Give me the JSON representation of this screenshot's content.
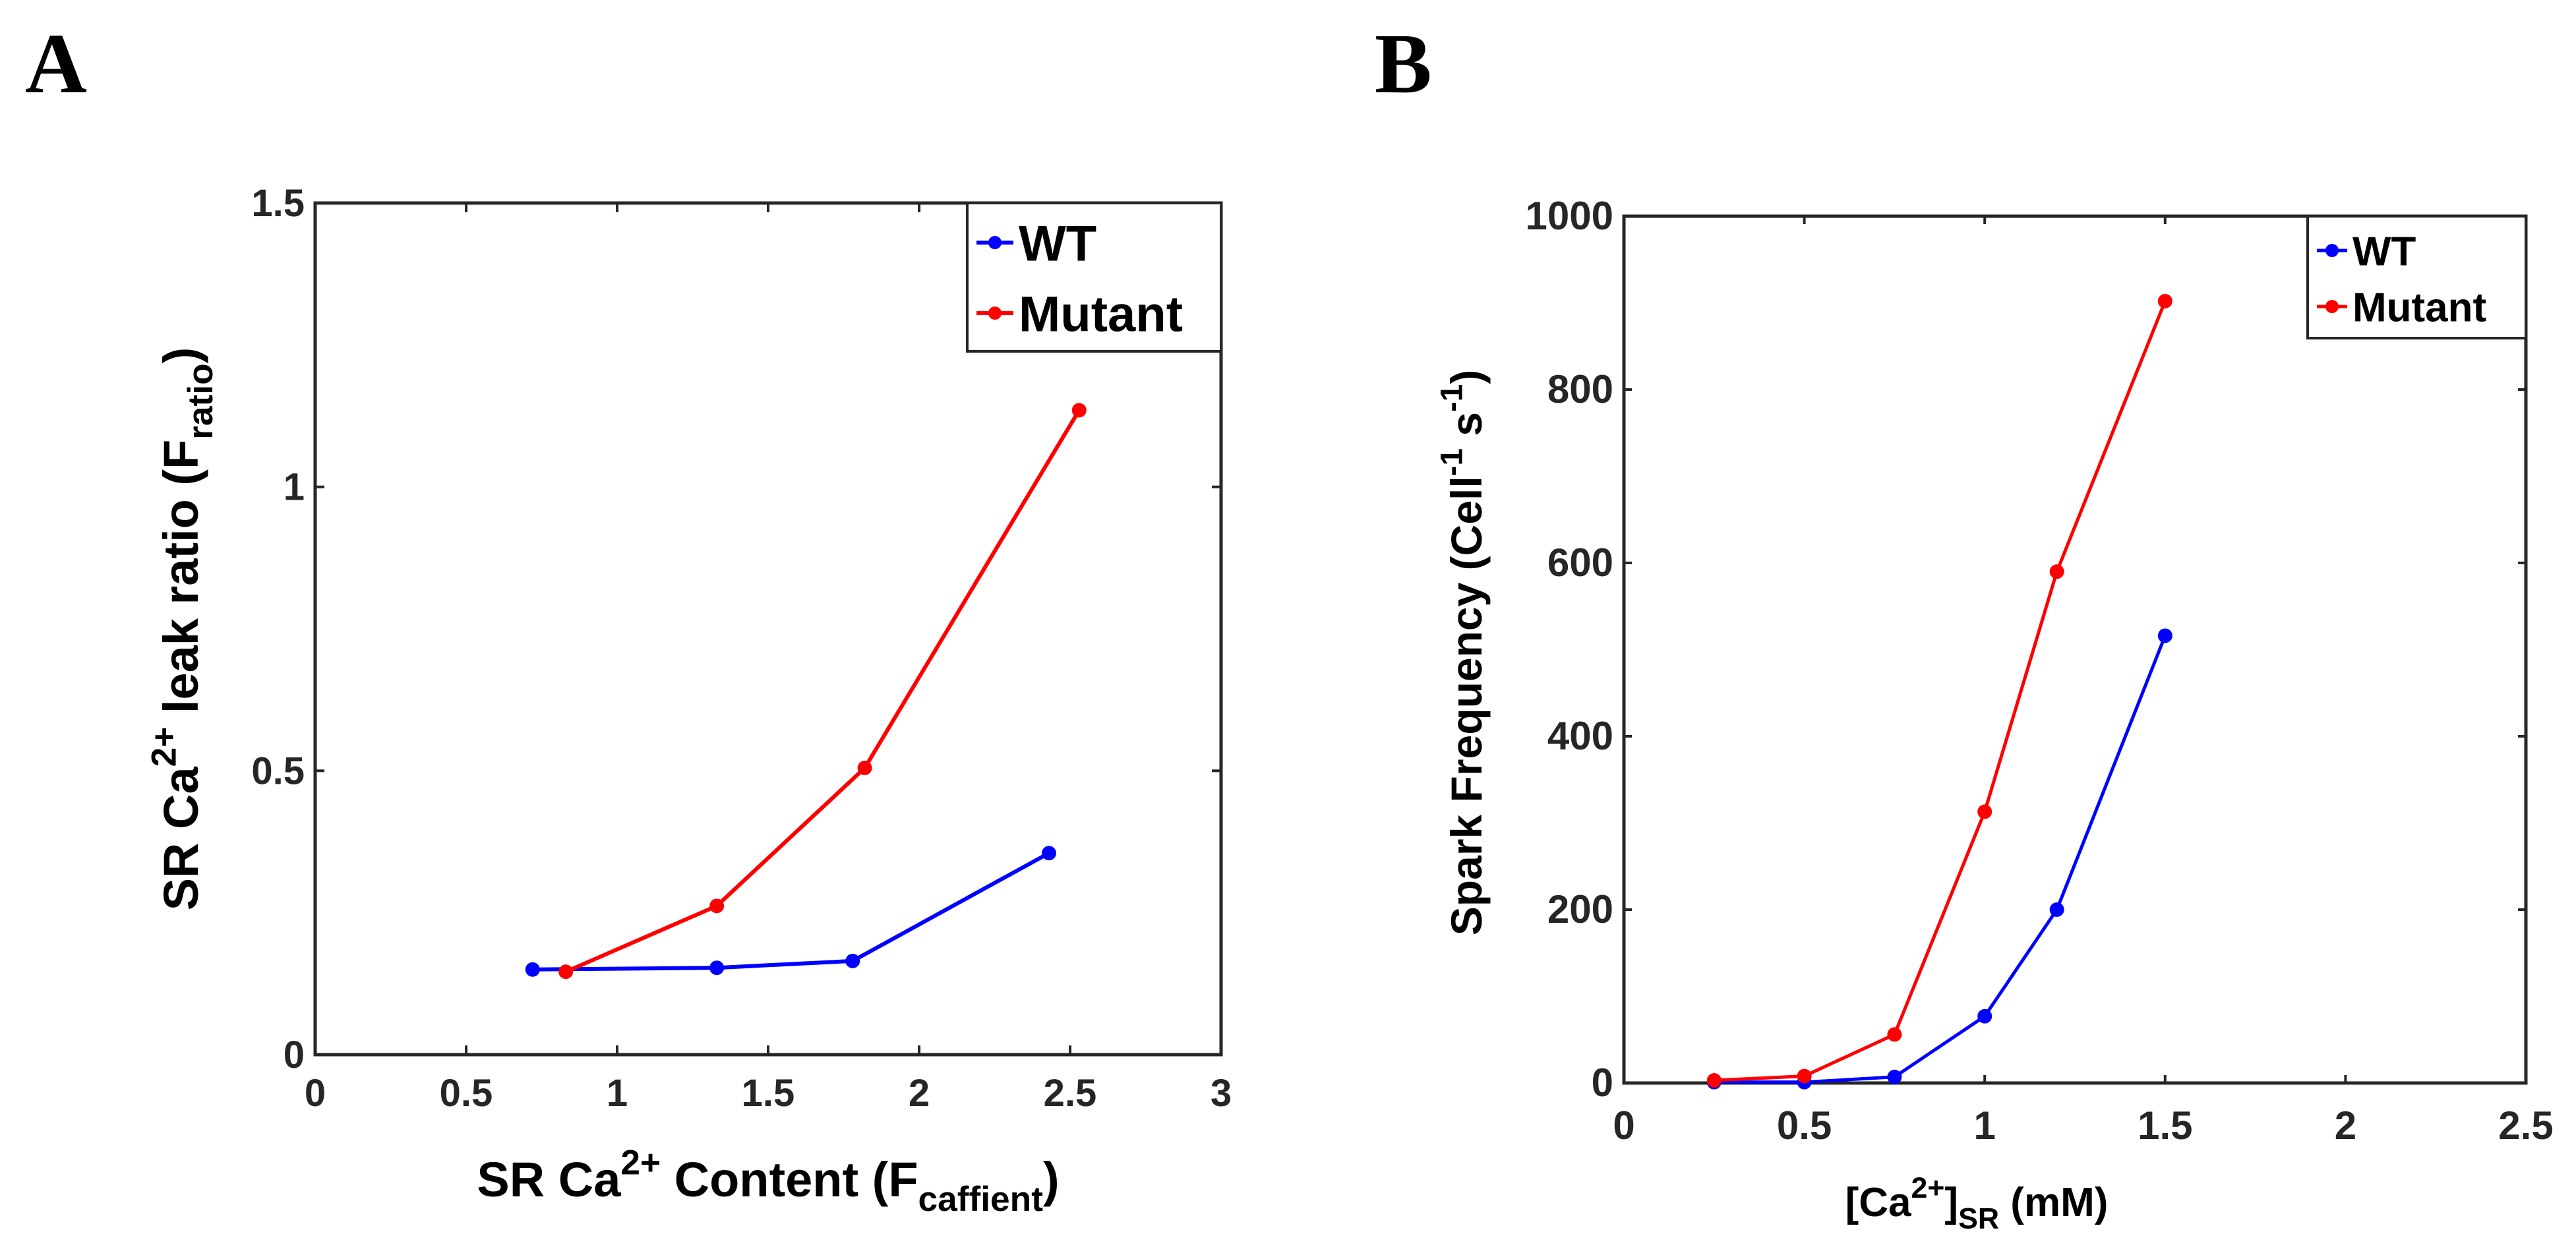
{
  "panels": {
    "A": "A",
    "B": "B"
  },
  "chart_data": [
    {
      "type": "line",
      "panel": "A",
      "title": "",
      "xlabel": {
        "main": "SR Ca",
        "sup": "2+",
        "after": " Content (F",
        "sub": "caffient",
        "close": ")"
      },
      "ylabel": {
        "main": "SR Ca",
        "sup": "2+",
        "after": " leak ratio (F",
        "sub": "ratio",
        "close": ")"
      },
      "xlim": [
        0,
        3
      ],
      "ylim": [
        0,
        1.5
      ],
      "xticks": [
        "0",
        "0.5",
        "1",
        "1.5",
        "2",
        "2.5",
        "3"
      ],
      "yticks": [
        "0",
        "0.5",
        "1",
        "1.5"
      ],
      "legend_position": "top-right",
      "series": [
        {
          "name": "WT",
          "color": "#0000ff",
          "x": [
            0.72,
            1.33,
            1.78,
            2.43
          ],
          "y": [
            0.15,
            0.153,
            0.165,
            0.355
          ]
        },
        {
          "name": "Mutant",
          "color": "#ff0000",
          "x": [
            0.83,
            1.33,
            1.82,
            2.53
          ],
          "y": [
            0.146,
            0.262,
            0.505,
            1.135
          ]
        }
      ]
    },
    {
      "type": "line",
      "panel": "B",
      "title": "",
      "xlabel": {
        "main": "[Ca",
        "sup": "2+",
        "after": "]",
        "sub": "SR",
        "close": " (mM)"
      },
      "ylabel": {
        "main": "Spark Frequency (Cell",
        "sup": "-1",
        "after": " s",
        "sup2": "-1",
        "close": ")"
      },
      "xlim": [
        0,
        2.5
      ],
      "ylim": [
        0,
        1000
      ],
      "xticks": [
        "0",
        "0.5",
        "1",
        "1.5",
        "2",
        "2.5"
      ],
      "yticks": [
        "0",
        "200",
        "400",
        "600",
        "800",
        "1000"
      ],
      "legend_position": "top-right",
      "series": [
        {
          "name": "WT",
          "color": "#0000ff",
          "x": [
            0.25,
            0.5,
            0.75,
            1.0,
            1.2,
            1.5
          ],
          "y": [
            1,
            1,
            7,
            77,
            200,
            516
          ]
        },
        {
          "name": "Mutant",
          "color": "#ff0000",
          "x": [
            0.25,
            0.5,
            0.75,
            1.0,
            1.2,
            1.5
          ],
          "y": [
            3,
            8,
            56,
            313,
            590,
            902
          ]
        }
      ]
    }
  ]
}
